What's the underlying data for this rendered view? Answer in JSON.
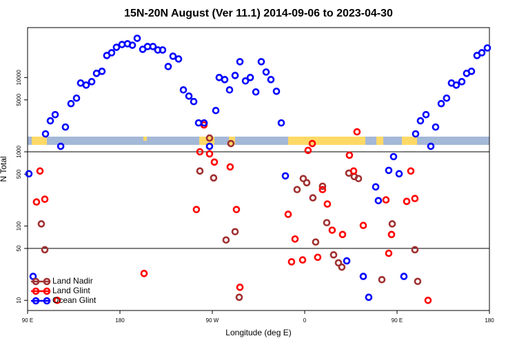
{
  "chart_data": {
    "type": "scatter",
    "title": "15N-20N August (Ver 11.1)   2014-09-06 to 2023-04-30",
    "xlabel": "Longitude (deg E)",
    "ylabel": "N Total",
    "xlim": [
      90,
      540
    ],
    "xticks": [
      {
        "value": 90,
        "label": "90 E"
      },
      {
        "value": 180,
        "label": "180"
      },
      {
        "value": 270,
        "label": "90 W"
      },
      {
        "value": 360,
        "label": "0"
      },
      {
        "value": 450,
        "label": "90 E"
      },
      {
        "value": 540,
        "label": "180"
      }
    ],
    "ylim": [
      7.3,
      47000
    ],
    "log_y": true,
    "yticks": [
      10,
      50,
      100,
      500,
      1000,
      5000,
      10000
    ],
    "hlines": [
      50,
      1000
    ],
    "legend": "bottom-left",
    "series": [
      {
        "name": "Land Nadir",
        "color": "#a03030",
        "x": [
          103.4,
          106.8,
          257.9,
          267.3,
          271.3,
          288.1,
          292.2,
          283.4,
          296.2,
          352.6,
          358.6,
          362,
          368,
          370.7,
          377.4,
          381.5,
          388.2,
          392.9,
          396.2,
          403,
          408.3,
          412.4,
          435.2,
          445.3,
          467.4,
          470.1
        ],
        "values": [
          107,
          48,
          551,
          1531,
          445,
          1292,
          84,
          65,
          11,
          310,
          436,
          383,
          240,
          61,
          344,
          111,
          41,
          32,
          28,
          516,
          464,
          436,
          19,
          107,
          48,
          18
        ]
      },
      {
        "name": "Land Glint",
        "color": "#ff0000",
        "x": [
          102.1,
          98.7,
          106.8,
          118.9,
          261.9,
          267.3,
          257.9,
          272,
          287.4,
          254.5,
          293.5,
          203.5,
          296.9,
          363.3,
          367.4,
          343.9,
          350.6,
          347.2,
          358,
          372.7,
          377.4,
          382.1,
          386.8,
          396.9,
          403.6,
          407.7,
          411,
          417.1,
          439.2,
          441.9,
          444.6,
          459.4,
          463.4,
          467.4,
          480.2
        ],
        "values": [
          551,
          211,
          230,
          10,
          2297,
          938,
          1000,
          727,
          626,
          167,
          167,
          23,
          15,
          1044,
          1292,
          144,
          67,
          33,
          35,
          38,
          310,
          198,
          88,
          77,
          899,
          551,
          1857,
          102,
          225,
          43,
          77,
          215,
          551,
          235,
          10
        ]
      },
      {
        "name": "Ocean Glint",
        "color": "#0000ff",
        "x": [
          91.3,
          95.4,
          107.5,
          112.2,
          116.9,
          122.3,
          126.9,
          132.3,
          137.7,
          141.7,
          147.1,
          152.5,
          157.2,
          162.5,
          167.2,
          171.9,
          176.6,
          182,
          187.4,
          192.1,
          196.8,
          202.2,
          206.9,
          212.2,
          216.9,
          221.6,
          227,
          231.7,
          237.1,
          241.8,
          247.2,
          251.9,
          256.6,
          262,
          267.3,
          273.4,
          276.7,
          282.1,
          286.8,
          292.2,
          296.9,
          302.3,
          307,
          312.4,
          317.7,
          322.4,
          327.1,
          332.5,
          337.2,
          341.2,
          401,
          417.1,
          422.4,
          429.2,
          431.8,
          441.9,
          446.6,
          452,
          456.7,
          468.1,
          472.8,
          478.2,
          482.9,
          487.6,
          493,
          498.3,
          503,
          507.7,
          513.1,
          517.8,
          522.5,
          527.9,
          532.6,
          538
        ],
        "values": [
          506,
          21,
          1742,
          2612,
          3162,
          1186,
          2154,
          4449,
          5275,
          8433,
          7907,
          8795,
          11370,
          12120,
          19780,
          21540,
          25540,
          27810,
          28440,
          27230,
          33730,
          23990,
          26120,
          26120,
          23470,
          23470,
          14060,
          19360,
          17780,
          6810,
          5623,
          4743,
          2449,
          2449,
          1186,
          3594,
          10000,
          9376,
          6810,
          10660,
          16330,
          8995,
          10000,
          6395,
          16330,
          11860,
          9376,
          6531,
          2449,
          474,
          34,
          21,
          11,
          337,
          220,
          562,
          861,
          506,
          21,
          1742,
          2612,
          3162,
          1186,
          2154,
          4449,
          5275,
          8433,
          7907,
          8795,
          11370,
          12120,
          19780,
          21540,
          25000
        ]
      }
    ]
  }
}
